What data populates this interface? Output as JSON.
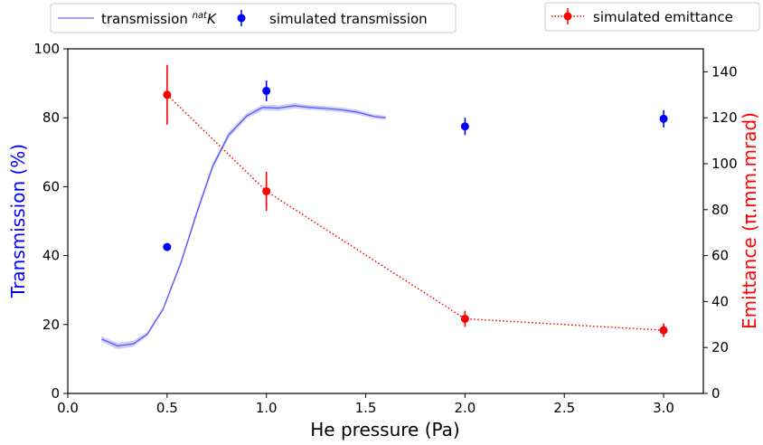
{
  "chart_data": {
    "type": "line",
    "xlabel": "He pressure (Pa)",
    "ylabel": "Transmission (%)",
    "y2label": "Emittance (π.mm.mrad)",
    "xlim": [
      0.0,
      3.2
    ],
    "ylim": [
      0,
      100
    ],
    "y2lim": [
      0,
      150
    ],
    "xticks": [
      "0.0",
      "0.5",
      "1.0",
      "1.5",
      "2.0",
      "2.5",
      "3.0"
    ],
    "yticks": [
      "0",
      "20",
      "40",
      "60",
      "80",
      "100"
    ],
    "y2ticks": [
      "0",
      "20",
      "40",
      "60",
      "80",
      "100",
      "120",
      "140"
    ],
    "grid": false,
    "colors": {
      "transmission": "#0000ff",
      "emittance": "#ff0000",
      "band": "#c8c8f4"
    },
    "series": [
      {
        "name": "transmission natK",
        "name_parts": {
          "base": "transmission ",
          "sup": "nat",
          "tail": "K"
        },
        "axis": "left",
        "style": "line-band",
        "x": [
          0.17,
          0.25,
          0.33,
          0.4,
          0.48,
          0.57,
          0.65,
          0.73,
          0.81,
          0.9,
          0.98,
          1.06,
          1.14,
          1.22,
          1.3,
          1.38,
          1.46,
          1.54,
          1.6
        ],
        "y": [
          15.8,
          13.8,
          14.4,
          17.2,
          24.5,
          38.0,
          52.5,
          66.0,
          75.0,
          80.5,
          83.0,
          82.8,
          83.5,
          83.0,
          82.7,
          82.3,
          81.6,
          80.4,
          80.0
        ],
        "band": [
          0.8,
          0.9,
          0.9,
          0.6,
          0.6,
          0.8,
          0.9,
          0.9,
          0.9,
          0.8,
          0.8,
          0.8,
          0.8,
          0.7,
          0.7,
          0.7,
          0.7,
          0.6,
          0.6
        ]
      },
      {
        "name": "simulated transmission",
        "axis": "left",
        "style": "errorbar",
        "x": [
          0.5,
          1.0,
          2.0,
          3.0
        ],
        "y": [
          42.5,
          87.8,
          77.5,
          79.7
        ],
        "err": [
          1.0,
          3.0,
          2.5,
          2.5
        ]
      },
      {
        "name": "simulated emittance",
        "axis": "right",
        "style": "errorbar-dotted",
        "x": [
          0.5,
          1.0,
          2.0,
          3.0
        ],
        "y": [
          130.0,
          88.0,
          32.5,
          27.5
        ],
        "err": [
          13.0,
          8.5,
          3.5,
          3.0
        ]
      }
    ],
    "legend": {
      "left_box": [
        "transmission natK",
        "simulated transmission"
      ],
      "right_box": [
        "simulated emittance"
      ],
      "placement": "top, outside plot area"
    }
  }
}
